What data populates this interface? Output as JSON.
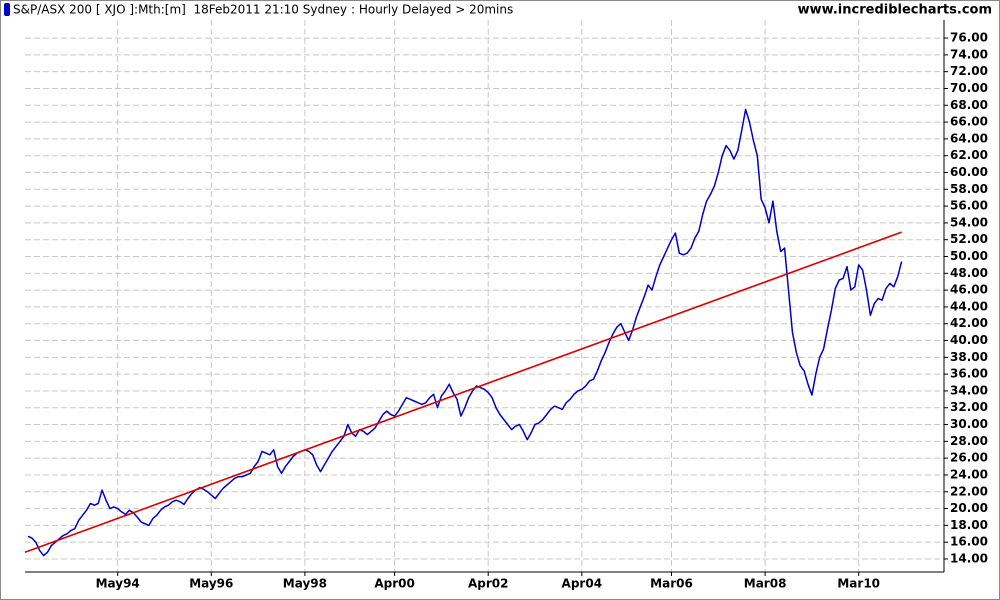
{
  "chart_data": {
    "type": "line",
    "title": "S&P/ASX 200 [ XJO ]:Mth:[m]  18Feb2011 21:10 Sydney : Hourly Delayed > 20mins",
    "source": "www.incrediblecharts.com",
    "categories": [
      null,
      null,
      null,
      null,
      null,
      null,
      null,
      null,
      null,
      null,
      null,
      null,
      null,
      null,
      null,
      null,
      null,
      null,
      null,
      null,
      null,
      null,
      null,
      "May94",
      null,
      null,
      null,
      null,
      null,
      null,
      null,
      null,
      null,
      null,
      null,
      null,
      null,
      null,
      null,
      null,
      null,
      null,
      null,
      null,
      null,
      null,
      null,
      "May96",
      null,
      null,
      null,
      null,
      null,
      null,
      null,
      null,
      null,
      null,
      null,
      null,
      null,
      null,
      null,
      null,
      null,
      null,
      null,
      null,
      null,
      null,
      null,
      "May98",
      null,
      null,
      null,
      null,
      null,
      null,
      null,
      null,
      null,
      null,
      null,
      null,
      null,
      null,
      null,
      null,
      null,
      null,
      null,
      null,
      null,
      null,
      "Apr00",
      null,
      null,
      null,
      null,
      null,
      null,
      null,
      null,
      null,
      null,
      null,
      null,
      null,
      null,
      null,
      null,
      null,
      null,
      null,
      null,
      null,
      null,
      null,
      "Apr02",
      null,
      null,
      null,
      null,
      null,
      null,
      null,
      null,
      null,
      null,
      null,
      null,
      null,
      null,
      null,
      null,
      null,
      null,
      null,
      null,
      null,
      null,
      null,
      "Apr04",
      null,
      null,
      null,
      null,
      null,
      null,
      null,
      null,
      null,
      null,
      null,
      null,
      null,
      null,
      null,
      null,
      null,
      null,
      null,
      null,
      null,
      null,
      "Mar06",
      null,
      null,
      null,
      null,
      null,
      null,
      null,
      null,
      null,
      null,
      null,
      null,
      null,
      null,
      null,
      null,
      null,
      null,
      null,
      null,
      null,
      null,
      null,
      "Mar08",
      null,
      null,
      null,
      null,
      null,
      null,
      null,
      null,
      null,
      null,
      null,
      null,
      null,
      null,
      null,
      null,
      null,
      null,
      null,
      null,
      null,
      null,
      null,
      "Mar10",
      null,
      null,
      null,
      null,
      null,
      null,
      null,
      null,
      null,
      null,
      null
    ],
    "series": [
      {
        "color": "#0000cc",
        "values": [
          16.7,
          16.5,
          16.0,
          15.0,
          14.4,
          14.8,
          15.6,
          16.0,
          16.4,
          16.8,
          17.0,
          17.4,
          17.6,
          18.6,
          19.2,
          19.8,
          20.6,
          20.4,
          20.6,
          22.2,
          21.0,
          20.0,
          20.2,
          20.0,
          19.6,
          19.3,
          19.8,
          19.5,
          19.0,
          18.4,
          18.2,
          18.0,
          18.8,
          19.2,
          19.8,
          20.2,
          20.4,
          20.8,
          21.0,
          20.8,
          20.5,
          21.2,
          21.8,
          22.2,
          22.5,
          22.3,
          22.0,
          21.6,
          21.2,
          21.8,
          22.4,
          22.8,
          23.2,
          23.6,
          23.8,
          23.8,
          24.0,
          24.2,
          25.0,
          25.6,
          26.8,
          26.6,
          26.4,
          27.0,
          25.0,
          24.2,
          25.0,
          25.6,
          26.2,
          26.6,
          26.8,
          27.0,
          26.8,
          26.4,
          25.2,
          24.4,
          25.2,
          26.0,
          26.8,
          27.4,
          28.0,
          28.6,
          30.0,
          29.0,
          28.6,
          29.4,
          29.2,
          28.8,
          29.2,
          29.6,
          30.4,
          31.2,
          31.6,
          31.2,
          31.0,
          31.6,
          32.4,
          33.2,
          33.0,
          32.8,
          32.6,
          32.4,
          32.6,
          33.2,
          33.6,
          32.0,
          33.4,
          34.0,
          34.8,
          33.8,
          33.0,
          31.0,
          32.0,
          33.2,
          34.0,
          34.6,
          34.4,
          34.2,
          33.8,
          33.2,
          32.0,
          31.2,
          30.6,
          30.0,
          29.4,
          29.8,
          30.0,
          29.2,
          28.2,
          29.0,
          30.0,
          30.2,
          30.6,
          31.2,
          31.8,
          32.2,
          32.0,
          31.8,
          32.6,
          33.0,
          33.6,
          34.0,
          34.2,
          34.6,
          35.2,
          35.4,
          36.4,
          37.6,
          38.6,
          39.8,
          40.8,
          41.6,
          42.0,
          41.0,
          40.0,
          41.2,
          42.8,
          44.0,
          45.2,
          46.6,
          46.0,
          47.6,
          49.0,
          50.0,
          51.0,
          52.0,
          52.8,
          50.4,
          50.2,
          50.4,
          51.0,
          52.2,
          53.0,
          55.0,
          56.6,
          57.4,
          58.4,
          60.0,
          62.0,
          63.2,
          62.6,
          61.6,
          62.6,
          65.0,
          67.5,
          66.0,
          63.8,
          62.0,
          56.8,
          55.8,
          54.0,
          56.6,
          53.0,
          50.6,
          51.0,
          46.0,
          41.0,
          38.6,
          37.0,
          36.4,
          34.8,
          33.5,
          36.0,
          38.0,
          39.0,
          41.4,
          43.6,
          46.2,
          47.2,
          47.4,
          48.8,
          46.0,
          46.4,
          49.0,
          48.4,
          46.0,
          43.0,
          44.4,
          45.0,
          44.8,
          46.2,
          46.8,
          46.4,
          47.6,
          49.4
        ]
      }
    ],
    "trend_line": {
      "color": "#dd0000",
      "start": 14.8,
      "end": 52.9
    },
    "ylim": [
      12.45,
      78.15
    ],
    "yticks": [
      {
        "value": 14,
        "label": "14.00"
      },
      {
        "value": 16,
        "label": "16.00"
      },
      {
        "value": 18,
        "label": "18.00"
      },
      {
        "value": 20,
        "label": "20.00"
      },
      {
        "value": 22,
        "label": "22.00"
      },
      {
        "value": 24,
        "label": "24.00"
      },
      {
        "value": 26,
        "label": "26.00"
      },
      {
        "value": 28,
        "label": "28.00"
      },
      {
        "value": 30,
        "label": "30.00"
      },
      {
        "value": 32,
        "label": "32.00"
      },
      {
        "value": 34,
        "label": "34.00"
      },
      {
        "value": 36,
        "label": "36.00"
      },
      {
        "value": 38,
        "label": "38.00"
      },
      {
        "value": 40,
        "label": "40.00"
      },
      {
        "value": 42,
        "label": "42.00"
      },
      {
        "value": 44,
        "label": "44.00"
      },
      {
        "value": 46,
        "label": "46.00"
      },
      {
        "value": 48,
        "label": "48.00"
      },
      {
        "value": 50,
        "label": "50.00"
      },
      {
        "value": 52,
        "label": "52.00"
      },
      {
        "value": 54,
        "label": "54.00"
      },
      {
        "value": 56,
        "label": "56.00"
      },
      {
        "value": 58,
        "label": "58.00"
      },
      {
        "value": 60,
        "label": "60.00"
      },
      {
        "value": 62,
        "label": "62.00"
      },
      {
        "value": 64,
        "label": "64.00"
      },
      {
        "value": 66,
        "label": "66.00"
      },
      {
        "value": 68,
        "label": "68.00"
      },
      {
        "value": 70,
        "label": "70.00"
      },
      {
        "value": 72,
        "label": "72.00"
      },
      {
        "value": 74,
        "label": "74.00"
      },
      {
        "value": 76,
        "label": "76.00"
      }
    ],
    "grid": true
  }
}
